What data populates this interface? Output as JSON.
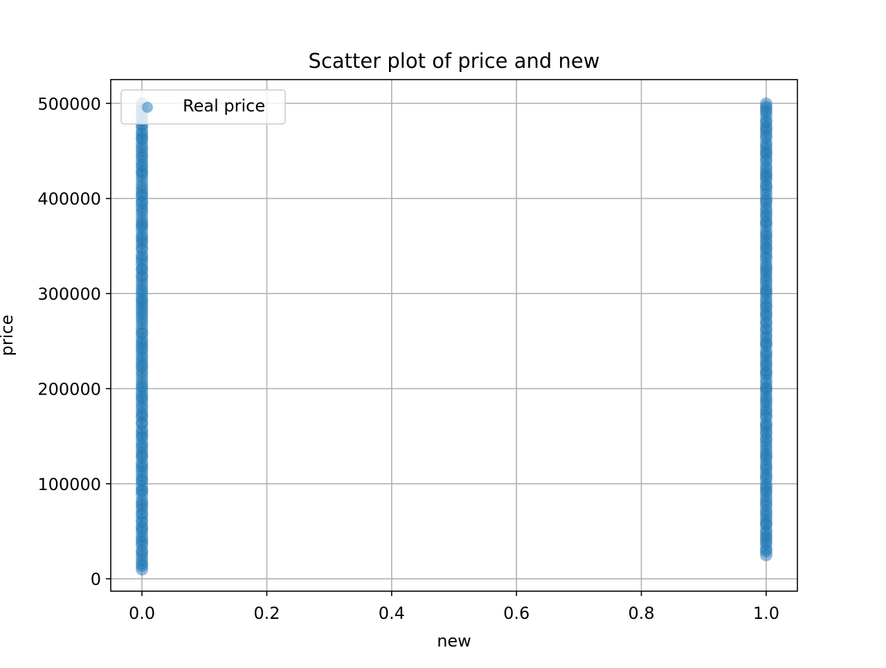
{
  "chart_data": {
    "type": "scatter",
    "title": "Scatter plot of price and new",
    "xlabel": "new",
    "ylabel": "price",
    "xlim": [
      -0.05,
      1.05
    ],
    "ylim": [
      -13000,
      525000
    ],
    "x_ticks": [
      0.0,
      0.2,
      0.4,
      0.6,
      0.8,
      1.0
    ],
    "x_tick_labels": [
      "0.0",
      "0.2",
      "0.4",
      "0.6",
      "0.8",
      "1.0"
    ],
    "y_ticks": [
      0,
      100000,
      200000,
      300000,
      400000,
      500000
    ],
    "y_tick_labels": [
      "0",
      "100000",
      "200000",
      "300000",
      "400000",
      "500000"
    ],
    "grid": true,
    "legend_position": "top-left",
    "series": [
      {
        "name": "Real price",
        "color": "#1f77b4",
        "alpha": 0.5,
        "groups": [
          {
            "x": 0,
            "y_min": 10000,
            "y_max": 500000
          },
          {
            "x": 1,
            "y_min": 25000,
            "y_max": 500000
          }
        ]
      }
    ]
  }
}
